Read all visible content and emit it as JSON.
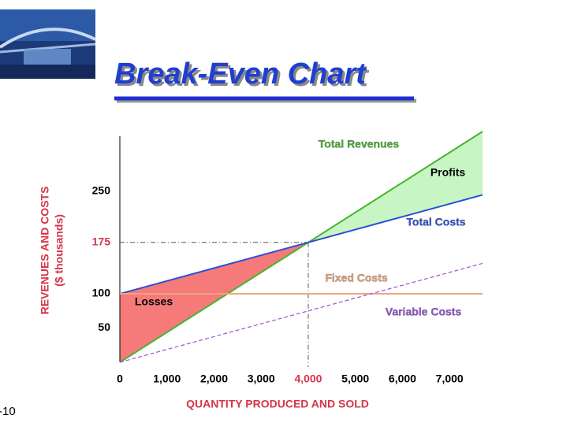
{
  "chart_data": {
    "type": "line",
    "title": "Break-Even Chart",
    "ylabel": [
      "REVENUES AND COSTS",
      "($ thousands)"
    ],
    "xlabel": "QUANTITY PRODUCED AND SOLD",
    "slide_number": "-10",
    "x": [
      0,
      4000,
      7700
    ],
    "series": [
      {
        "name": "Total Revenues",
        "color": "#45b52c",
        "values": [
          0,
          175,
          336.875
        ]
      },
      {
        "name": "Total Costs",
        "color": "#2b4fd8",
        "values": [
          100,
          175,
          244.375
        ]
      },
      {
        "name": "Fixed Costs",
        "color": "#f0a47c",
        "values": [
          100,
          100,
          100
        ]
      },
      {
        "name": "Variable Costs",
        "color": "#9a52d8",
        "values": [
          0,
          75,
          144.375
        ],
        "dashed": true
      }
    ],
    "profit_label": "Profits",
    "loss_label": "Losses",
    "profit_color": "#c8f5c4",
    "loss_color": "#f77a7a",
    "break_even": {
      "x": 4000,
      "y": 175
    },
    "highlight_color": "#d6344a",
    "xlim": [
      0,
      7700
    ],
    "ylim": [
      0,
      330
    ],
    "xticks": [
      0,
      {
        "value": 1000,
        "label": "1,000"
      },
      {
        "value": 2000,
        "label": "2,000"
      },
      {
        "value": 3000,
        "label": "3,000"
      },
      {
        "value": 4000,
        "label": "4,000"
      },
      {
        "value": 5000,
        "label": "5,000"
      },
      {
        "value": 6000,
        "label": "6,000"
      },
      {
        "value": 7000,
        "label": "7,000"
      }
    ],
    "yticks": [
      50,
      100,
      175,
      250
    ]
  }
}
